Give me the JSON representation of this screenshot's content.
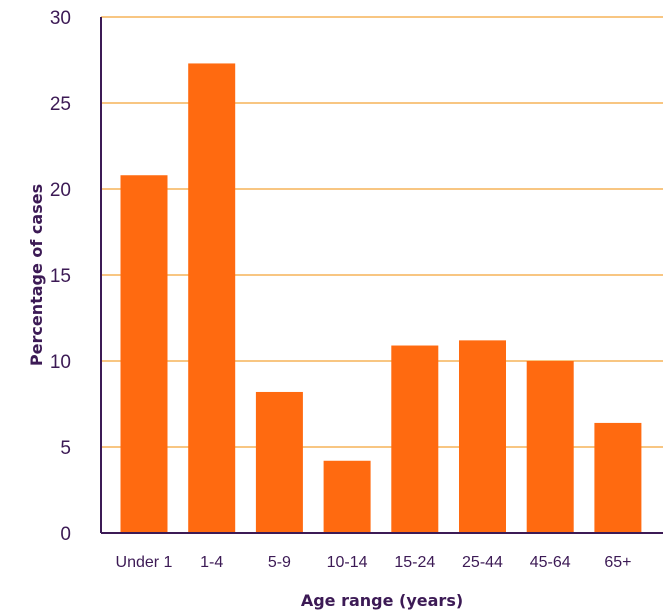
{
  "chart_data": {
    "type": "bar",
    "title": "",
    "xlabel": "Age range (years)",
    "ylabel": "Percentage of cases",
    "categories": [
      "Under 1",
      "1-4",
      "5-9",
      "10-14",
      "15-24",
      "25-44",
      "45-64",
      "65+"
    ],
    "values": [
      20.8,
      27.3,
      8.2,
      4.2,
      10.9,
      11.2,
      10.0,
      6.4
    ],
    "ylim": [
      0,
      30
    ],
    "yticks": [
      "0",
      "5",
      "10",
      "15",
      "20",
      "25",
      "30"
    ],
    "grid": true,
    "legend": "none"
  },
  "colors": {
    "bar": "#ff6a10",
    "grid": "#f5b458",
    "axis": "#3c1a55",
    "text": "#3c1a55"
  }
}
